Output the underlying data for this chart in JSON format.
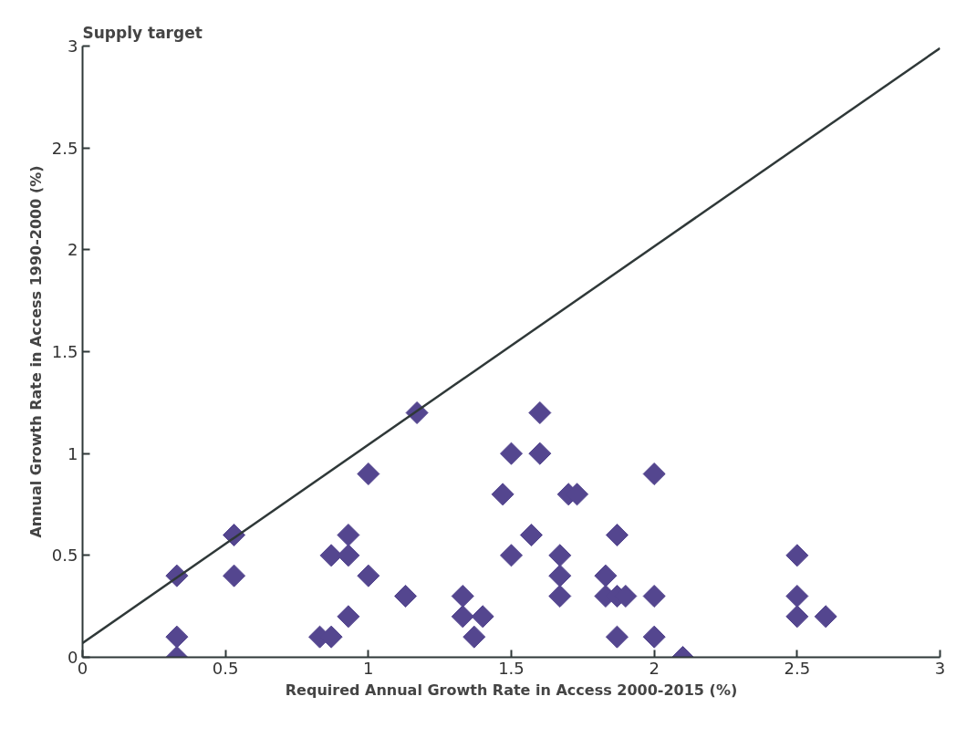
{
  "chart_data": {
    "type": "scatter",
    "title": "Supply target",
    "xlabel": "Required Annual Growth Rate in Access 2000-2015 (%)",
    "ylabel": "Annual Growth Rate in Access 1990-2000 (%)",
    "xlim": [
      0,
      3
    ],
    "ylim": [
      0,
      3
    ],
    "xticks": [
      0,
      0.5,
      1,
      1.5,
      2,
      2.5,
      3
    ],
    "yticks": [
      0,
      0.5,
      1,
      1.5,
      2,
      2.5,
      3
    ],
    "grid": false,
    "series": [
      {
        "color": "#54468f",
        "marker": "diamond",
        "x": [
          0.33,
          0.33,
          0.33,
          0.53,
          0.53,
          0.83,
          0.87,
          0.87,
          0.93,
          0.93,
          0.93,
          1.0,
          1.0,
          1.13,
          1.17,
          1.33,
          1.33,
          1.37,
          1.4,
          1.47,
          1.5,
          1.5,
          1.57,
          1.6,
          1.6,
          1.67,
          1.67,
          1.67,
          1.7,
          1.73,
          1.83,
          1.83,
          1.87,
          1.87,
          1.87,
          1.9,
          2.0,
          2.0,
          2.0,
          2.1,
          2.5,
          2.5,
          2.5,
          2.6
        ],
        "values": [
          0.4,
          0.1,
          0.0,
          0.6,
          0.4,
          0.1,
          0.1,
          0.5,
          0.6,
          0.5,
          0.2,
          0.9,
          0.4,
          0.3,
          1.2,
          0.3,
          0.2,
          0.1,
          0.2,
          0.8,
          1.0,
          0.5,
          0.6,
          1.2,
          1.0,
          0.5,
          0.4,
          0.3,
          0.8,
          0.8,
          0.4,
          0.3,
          0.6,
          0.3,
          0.1,
          0.3,
          0.9,
          0.3,
          0.1,
          0.0,
          0.5,
          0.3,
          0.2,
          0.2
        ]
      },
      {
        "type": "line",
        "color": "#2f3838",
        "line_style": "solid",
        "x": [
          0,
          3
        ],
        "values": [
          0.07,
          2.99
        ]
      }
    ]
  }
}
